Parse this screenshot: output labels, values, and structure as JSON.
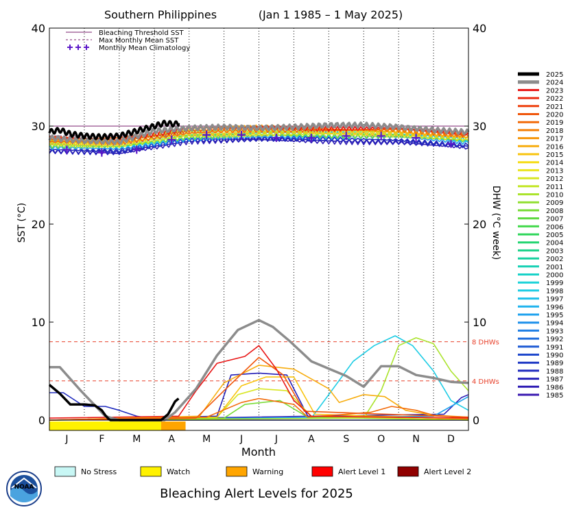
{
  "chart_data": {
    "type": "line",
    "title": "Southern Philippines",
    "date_range": "(Jan 1 1985 – 1 May 2025)",
    "xlabel": "Month",
    "ylabel_left": "SST (°C)",
    "ylabel_right": "DHW (°C week)",
    "ylim": [
      0,
      40
    ],
    "yticks": [
      "0",
      "10",
      "20",
      "30",
      "40"
    ],
    "months": [
      "J",
      "F",
      "M",
      "A",
      "M",
      "J",
      "J",
      "A",
      "S",
      "O",
      "N",
      "D"
    ],
    "grid": "dotted vertical lines between months",
    "bleaching_threshold_sst": 30.0,
    "max_monthly_mean_sst": 29.0,
    "dhw_threshold_labels": [
      {
        "value": 8,
        "label": "8 DHWs"
      },
      {
        "value": 4,
        "label": "4 DHWs"
      }
    ],
    "legend_top": [
      {
        "label": "Bleaching Threshold SST",
        "color": "#7a1f6e",
        "style": "solid"
      },
      {
        "label": "Max Monthly Mean SST",
        "color": "#7a1f6e",
        "style": "dashed"
      },
      {
        "label": "Monthly Mean Climatology",
        "color": "#5b18c8",
        "style": "plus"
      }
    ],
    "climatology": {
      "x": [
        0.5,
        1.5,
        2.5,
        3.5,
        4.5,
        5.5,
        6.5,
        7.5,
        8.5,
        9.5,
        10.5,
        11.5
      ],
      "y": [
        27.6,
        27.3,
        27.6,
        28.6,
        29.1,
        29.1,
        28.8,
        28.8,
        29.0,
        29.0,
        28.8,
        28.2
      ]
    },
    "year_colors": [
      {
        "year": "2025",
        "color": "#000000"
      },
      {
        "year": "2024",
        "color": "#8c8c8c"
      },
      {
        "year": "2023",
        "color": "#e81414"
      },
      {
        "year": "2022",
        "color": "#eb2a10"
      },
      {
        "year": "2021",
        "color": "#ee400d"
      },
      {
        "year": "2020",
        "color": "#f0550a"
      },
      {
        "year": "2019",
        "color": "#f26a08"
      },
      {
        "year": "2018",
        "color": "#f48008"
      },
      {
        "year": "2017",
        "color": "#f6960a"
      },
      {
        "year": "2016",
        "color": "#f7ac0c"
      },
      {
        "year": "2015",
        "color": "#f8c40f"
      },
      {
        "year": "2014",
        "color": "#f5dc14"
      },
      {
        "year": "2013",
        "color": "#eae41a"
      },
      {
        "year": "2012",
        "color": "#d8e620"
      },
      {
        "year": "2011",
        "color": "#c2e626"
      },
      {
        "year": "2010",
        "color": "#aae32b"
      },
      {
        "year": "2009",
        "color": "#90df30"
      },
      {
        "year": "2008",
        "color": "#78dc36"
      },
      {
        "year": "2007",
        "color": "#5cd93e"
      },
      {
        "year": "2006",
        "color": "#40d848"
      },
      {
        "year": "2005",
        "color": "#2ed65a"
      },
      {
        "year": "2004",
        "color": "#22d470"
      },
      {
        "year": "2003",
        "color": "#1ad288"
      },
      {
        "year": "2002",
        "color": "#16d09e"
      },
      {
        "year": "2001",
        "color": "#16d0b4"
      },
      {
        "year": "2000",
        "color": "#18d2c8"
      },
      {
        "year": "1999",
        "color": "#1ad2d8"
      },
      {
        "year": "1998",
        "color": "#1ccce4"
      },
      {
        "year": "1997",
        "color": "#1ec0ea"
      },
      {
        "year": "1996",
        "color": "#1eb2ee"
      },
      {
        "year": "1995",
        "color": "#1ea2ee"
      },
      {
        "year": "1994",
        "color": "#1e90ea"
      },
      {
        "year": "1993",
        "color": "#1e7ee4"
      },
      {
        "year": "1992",
        "color": "#1e6cdc"
      },
      {
        "year": "1991",
        "color": "#1e5ad4"
      },
      {
        "year": "1990",
        "color": "#1e48cc"
      },
      {
        "year": "1989",
        "color": "#1e38c4"
      },
      {
        "year": "1988",
        "color": "#1e2abe"
      },
      {
        "year": "1987",
        "color": "#2420b8"
      },
      {
        "year": "1986",
        "color": "#2e1cb4"
      },
      {
        "year": "1985",
        "color": "#3a18b0"
      }
    ],
    "series": [
      {
        "name": "2025",
        "sst": {
          "x": [
            0,
            0.3,
            0.6,
            1.0,
            1.5,
            2.0,
            2.5,
            3.0,
            3.3,
            3.6,
            3.7
          ],
          "y": [
            29.4,
            29.6,
            29.2,
            29.0,
            28.9,
            29.0,
            29.5,
            30.0,
            30.3,
            30.2,
            30.3
          ]
        },
        "dhw": {
          "x": [
            0,
            0.3,
            0.6,
            1.0,
            1.3,
            1.5,
            1.6,
            1.7,
            1.75,
            3.2,
            3.4,
            3.6,
            3.7
          ],
          "y": [
            3.6,
            2.7,
            1.6,
            1.6,
            1.5,
            1.0,
            0.5,
            0.1,
            0,
            0,
            0.6,
            1.9,
            2.2
          ]
        }
      },
      {
        "name": "2024",
        "sst": {
          "x": [
            0,
            1.0,
            2.0,
            3.0,
            4.0,
            5.0,
            6.0,
            7.0,
            8.0,
            9.0,
            10.0,
            11.0,
            12.0
          ],
          "y": [
            28.8,
            28.5,
            28.4,
            29.5,
            29.8,
            29.9,
            29.8,
            29.9,
            30.1,
            30.1,
            29.9,
            29.6,
            29.4
          ]
        },
        "dhw": {
          "x": [
            0,
            0.3,
            0.9,
            1.6,
            2.0,
            3.3,
            3.6,
            4.2,
            4.8,
            5.4,
            6.0,
            6.4,
            6.9,
            7.5,
            8.5,
            9.0,
            9.5,
            10.0,
            10.5,
            11.0,
            11.5,
            12.0
          ],
          "y": [
            5.4,
            5.4,
            3.0,
            0.4,
            0,
            0,
            0.8,
            3.2,
            6.6,
            9.2,
            10.2,
            9.5,
            8.0,
            6.0,
            4.5,
            3.4,
            5.5,
            5.5,
            4.6,
            4.3,
            3.9,
            3.8
          ]
        }
      },
      {
        "name": "2023",
        "sst": {
          "x": [
            0,
            2.0,
            4.0,
            6.0,
            8.0,
            10.0,
            12.0
          ],
          "y": [
            28.9,
            28.6,
            29.7,
            29.9,
            29.7,
            29.8,
            29.3
          ]
        },
        "dhw": {
          "x": [
            0,
            3.7,
            4.2,
            4.8,
            5.6,
            6.0,
            6.5,
            7.0,
            7.5,
            12.0
          ],
          "y": [
            0.2,
            0.4,
            3.0,
            5.8,
            6.5,
            7.6,
            5.2,
            2.0,
            0.4,
            0.2
          ]
        }
      },
      {
        "name": "2020",
        "sst": {
          "x": [
            0,
            2.0,
            4.0,
            6.0,
            8.0,
            10.0,
            12.0
          ],
          "y": [
            28.8,
            28.7,
            29.6,
            29.9,
            29.8,
            29.7,
            29.2
          ]
        },
        "dhw": {
          "x": [
            0,
            4.2,
            5.0,
            6.0,
            6.7,
            7.3,
            12.0
          ],
          "y": [
            0,
            0.2,
            3.0,
            6.4,
            4.6,
            0.9,
            0.3
          ]
        }
      },
      {
        "name": "2019",
        "sst": {
          "x": [
            0,
            2.0,
            4.0,
            6.0,
            8.0,
            10.0,
            12.0
          ],
          "y": [
            28.4,
            28.3,
            29.3,
            29.6,
            29.6,
            29.6,
            29.0
          ]
        },
        "dhw": {
          "x": [
            0,
            4.5,
            5.5,
            6.0,
            7.0,
            7.4,
            9.2,
            9.8,
            10.5,
            11.0,
            12.0
          ],
          "y": [
            0,
            0.3,
            1.8,
            2.2,
            1.6,
            0.3,
            0.8,
            1.4,
            1.0,
            0.5,
            0.2
          ]
        }
      },
      {
        "name": "2016",
        "sst": {
          "x": [
            0,
            2.0,
            4.0,
            6.0,
            8.0,
            10.0,
            12.0
          ],
          "y": [
            28.6,
            28.4,
            29.8,
            29.9,
            29.6,
            29.5,
            29.0
          ]
        },
        "dhw": {
          "x": [
            0,
            4.3,
            5.0,
            6.0,
            7.0,
            8.0,
            8.3,
            9.0,
            9.6,
            10.2,
            11.0,
            12.0
          ],
          "y": [
            0,
            0.4,
            3.8,
            5.6,
            5.2,
            3.2,
            1.8,
            2.6,
            2.4,
            1.0,
            0.5,
            0.3
          ]
        }
      },
      {
        "name": "2015",
        "sst": {
          "x": [
            0,
            2.0,
            4.0,
            6.0,
            8.0,
            10.0,
            12.0
          ],
          "y": [
            28.3,
            28.2,
            29.2,
            29.4,
            29.3,
            29.3,
            28.8
          ]
        },
        "dhw": {
          "x": [
            0,
            4.8,
            5.5,
            6.2,
            7.0,
            7.6,
            12.0
          ],
          "y": [
            0,
            0.3,
            3.5,
            4.4,
            4.4,
            0.6,
            0.1
          ]
        }
      },
      {
        "name": "2010",
        "sst": {
          "x": [
            0,
            2.0,
            4.0,
            6.0,
            8.0,
            10.0,
            12.0
          ],
          "y": [
            28.5,
            28.4,
            29.5,
            29.6,
            29.5,
            29.4,
            29.0
          ]
        },
        "dhw": {
          "x": [
            0,
            9.0,
            9.5,
            10.0,
            10.5,
            11.0,
            11.5,
            12.0
          ],
          "y": [
            0,
            0.2,
            3.0,
            7.6,
            8.4,
            7.8,
            5.0,
            3.0
          ]
        }
      },
      {
        "name": "2012",
        "sst": {
          "x": [
            0,
            2.0,
            4.0,
            6.0,
            8.0,
            10.0,
            12.0
          ],
          "y": [
            28.2,
            28.0,
            29.0,
            29.2,
            29.2,
            29.1,
            28.6
          ]
        },
        "dhw": {
          "x": [
            0,
            4.8,
            5.4,
            6.0,
            6.8,
            7.5,
            12.0
          ],
          "y": [
            0,
            0.3,
            2.6,
            3.2,
            3.0,
            0.4,
            0
          ]
        }
      },
      {
        "name": "2008",
        "sst": {
          "x": [
            0,
            2.0,
            4.0,
            6.0,
            8.0,
            10.0,
            12.0
          ],
          "y": [
            28.0,
            27.9,
            28.9,
            29.1,
            29.0,
            29.0,
            28.5
          ]
        },
        "dhw": {
          "x": [
            0,
            5.0,
            5.6,
            6.6,
            7.4,
            12.0
          ],
          "y": [
            0,
            0.2,
            1.6,
            2.0,
            0.3,
            0
          ]
        }
      },
      {
        "name": "1998",
        "sst": {
          "x": [
            0,
            2.0,
            4.0,
            6.0,
            8.0,
            10.0,
            12.0
          ],
          "y": [
            28.1,
            27.9,
            29.1,
            29.3,
            29.2,
            29.2,
            28.6
          ]
        },
        "dhw": {
          "x": [
            0,
            7.5,
            8.0,
            8.7,
            9.3,
            9.9,
            10.4,
            11.0,
            11.5,
            12.0
          ],
          "y": [
            0,
            0.2,
            2.6,
            6.0,
            7.6,
            8.6,
            7.6,
            5.0,
            2.0,
            1.0
          ]
        }
      },
      {
        "name": "1995",
        "sst": {
          "x": [
            0,
            2.0,
            4.0,
            6.0,
            8.0,
            10.0,
            12.0
          ],
          "y": [
            27.8,
            27.7,
            28.7,
            28.9,
            28.9,
            28.9,
            28.3
          ]
        },
        "dhw": {
          "x": [
            0,
            11.0,
            11.5,
            12.0
          ],
          "y": [
            0,
            0.4,
            1.4,
            2.4
          ]
        }
      },
      {
        "name": "1988",
        "sst": {
          "x": [
            0,
            2.0,
            4.0,
            6.0,
            8.0,
            10.0,
            12.0
          ],
          "y": [
            27.6,
            27.5,
            28.6,
            28.8,
            28.7,
            28.6,
            28.0
          ]
        },
        "dhw": {
          "x": [
            0,
            0.4,
            1.0,
            1.6,
            2.0,
            2.5,
            3.2,
            12.0
          ],
          "y": [
            2.8,
            2.8,
            1.4,
            1.4,
            1.0,
            0.4,
            0,
            0
          ]
        }
      },
      {
        "name": "1987",
        "sst": {
          "x": [
            0,
            2.0,
            4.0,
            6.0,
            8.0,
            10.0,
            12.0
          ],
          "y": [
            27.4,
            27.3,
            28.5,
            28.7,
            28.5,
            28.4,
            27.9
          ]
        },
        "dhw": {
          "x": [
            0,
            4.8,
            5.2,
            6.0,
            6.8,
            7.4,
            12.0
          ],
          "y": [
            0,
            0.4,
            4.6,
            4.8,
            4.6,
            0.4,
            0
          ]
        }
      },
      {
        "name": "1986",
        "sst": {
          "x": [
            0,
            2.0,
            4.0,
            6.0,
            8.0,
            10.0,
            12.0
          ],
          "y": [
            27.5,
            27.2,
            28.4,
            28.6,
            28.4,
            28.3,
            27.8
          ]
        },
        "dhw": {
          "x": [
            0,
            11.3,
            11.8,
            12.0
          ],
          "y": [
            0,
            0.6,
            2.3,
            2.6
          ]
        }
      }
    ],
    "alert_levels_2025": [
      {
        "x_start": 0.0,
        "x_end": 3.2,
        "level": "Watch"
      },
      {
        "x_start": 3.2,
        "x_end": 3.9,
        "level": "Warning"
      }
    ]
  },
  "legend_alert": [
    {
      "label": "No Stress",
      "color": "#c8f7f5"
    },
    {
      "label": "Watch",
      "color": "#fff200"
    },
    {
      "label": "Warning",
      "color": "#ffa500"
    },
    {
      "label": "Alert Level 1",
      "color": "#ff0000"
    },
    {
      "label": "Alert Level 2",
      "color": "#900000"
    }
  ],
  "footer_title": "Bleaching Alert Levels for 2025",
  "logo_text": "NOAA",
  "colors": {
    "threshold_line": "#7a1f6e",
    "dhw_threshold": "#e8402a",
    "climatology_marker": "#5b18c8"
  }
}
